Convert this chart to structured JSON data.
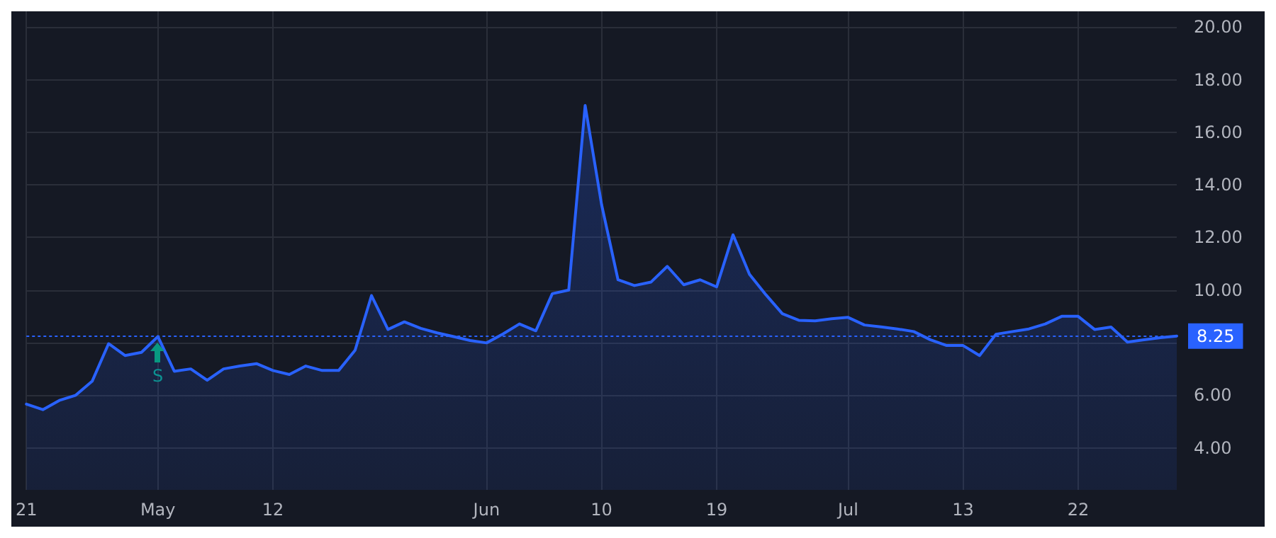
{
  "chart_data": {
    "type": "area",
    "categories": [
      "21",
      null,
      null,
      null,
      null,
      null,
      null,
      null,
      "May",
      null,
      null,
      null,
      null,
      null,
      null,
      "12",
      null,
      null,
      null,
      null,
      null,
      null,
      null,
      null,
      null,
      null,
      null,
      null,
      "Jun",
      null,
      null,
      null,
      null,
      null,
      null,
      "10",
      null,
      null,
      null,
      null,
      null,
      null,
      "19",
      null,
      null,
      null,
      null,
      null,
      null,
      null,
      "Jul",
      null,
      null,
      null,
      null,
      null,
      null,
      "13",
      null,
      null,
      null,
      null,
      null,
      null,
      "22",
      null,
      null,
      null,
      null,
      null,
      null
    ],
    "series": [
      {
        "color": "#2962ff",
        "values": [
          5.66,
          5.45,
          5.8,
          6.0,
          6.53,
          7.96,
          7.51,
          7.63,
          8.23,
          6.91,
          7.0,
          6.57,
          7.0,
          7.11,
          7.2,
          6.94,
          6.79,
          7.11,
          6.94,
          6.94,
          7.71,
          9.79,
          8.5,
          8.79,
          8.54,
          8.37,
          8.23,
          8.08,
          7.99,
          8.33,
          8.71,
          8.45,
          9.86,
          10.0,
          17.02,
          13.25,
          10.39,
          10.17,
          10.3,
          10.9,
          10.2,
          10.39,
          10.12,
          12.1,
          10.6,
          9.82,
          9.1,
          8.85,
          8.83,
          8.91,
          8.96,
          8.67,
          8.6,
          8.52,
          8.42,
          8.11,
          7.89,
          7.89,
          7.51,
          8.32,
          8.42,
          8.52,
          8.71,
          9.0,
          9.0,
          8.5,
          8.59,
          8.02,
          8.11,
          8.19,
          8.25
        ]
      }
    ],
    "ylim": [
      2.4,
      20.6
    ],
    "yticks": [
      {
        "value": 4,
        "label": "4.00"
      },
      {
        "value": 6,
        "label": "6.00"
      },
      {
        "value": 8,
        "label": null
      },
      {
        "value": 10,
        "label": "10.00"
      },
      {
        "value": 12,
        "label": "12.00"
      },
      {
        "value": 14,
        "label": "14.00"
      },
      {
        "value": 16,
        "label": "16.00"
      },
      {
        "value": 18,
        "label": "18.00"
      },
      {
        "value": 20,
        "label": "20.00"
      }
    ],
    "ref_lines": [
      {
        "axis": "y",
        "value": 8.25,
        "label": "8.25",
        "color": "#2962ff",
        "line_style": "dotted"
      }
    ],
    "annotations": [
      {
        "text": "S",
        "x": "May",
        "y": 8.23
      }
    ],
    "grid": true,
    "marker": "none",
    "line_style": "solid"
  }
}
